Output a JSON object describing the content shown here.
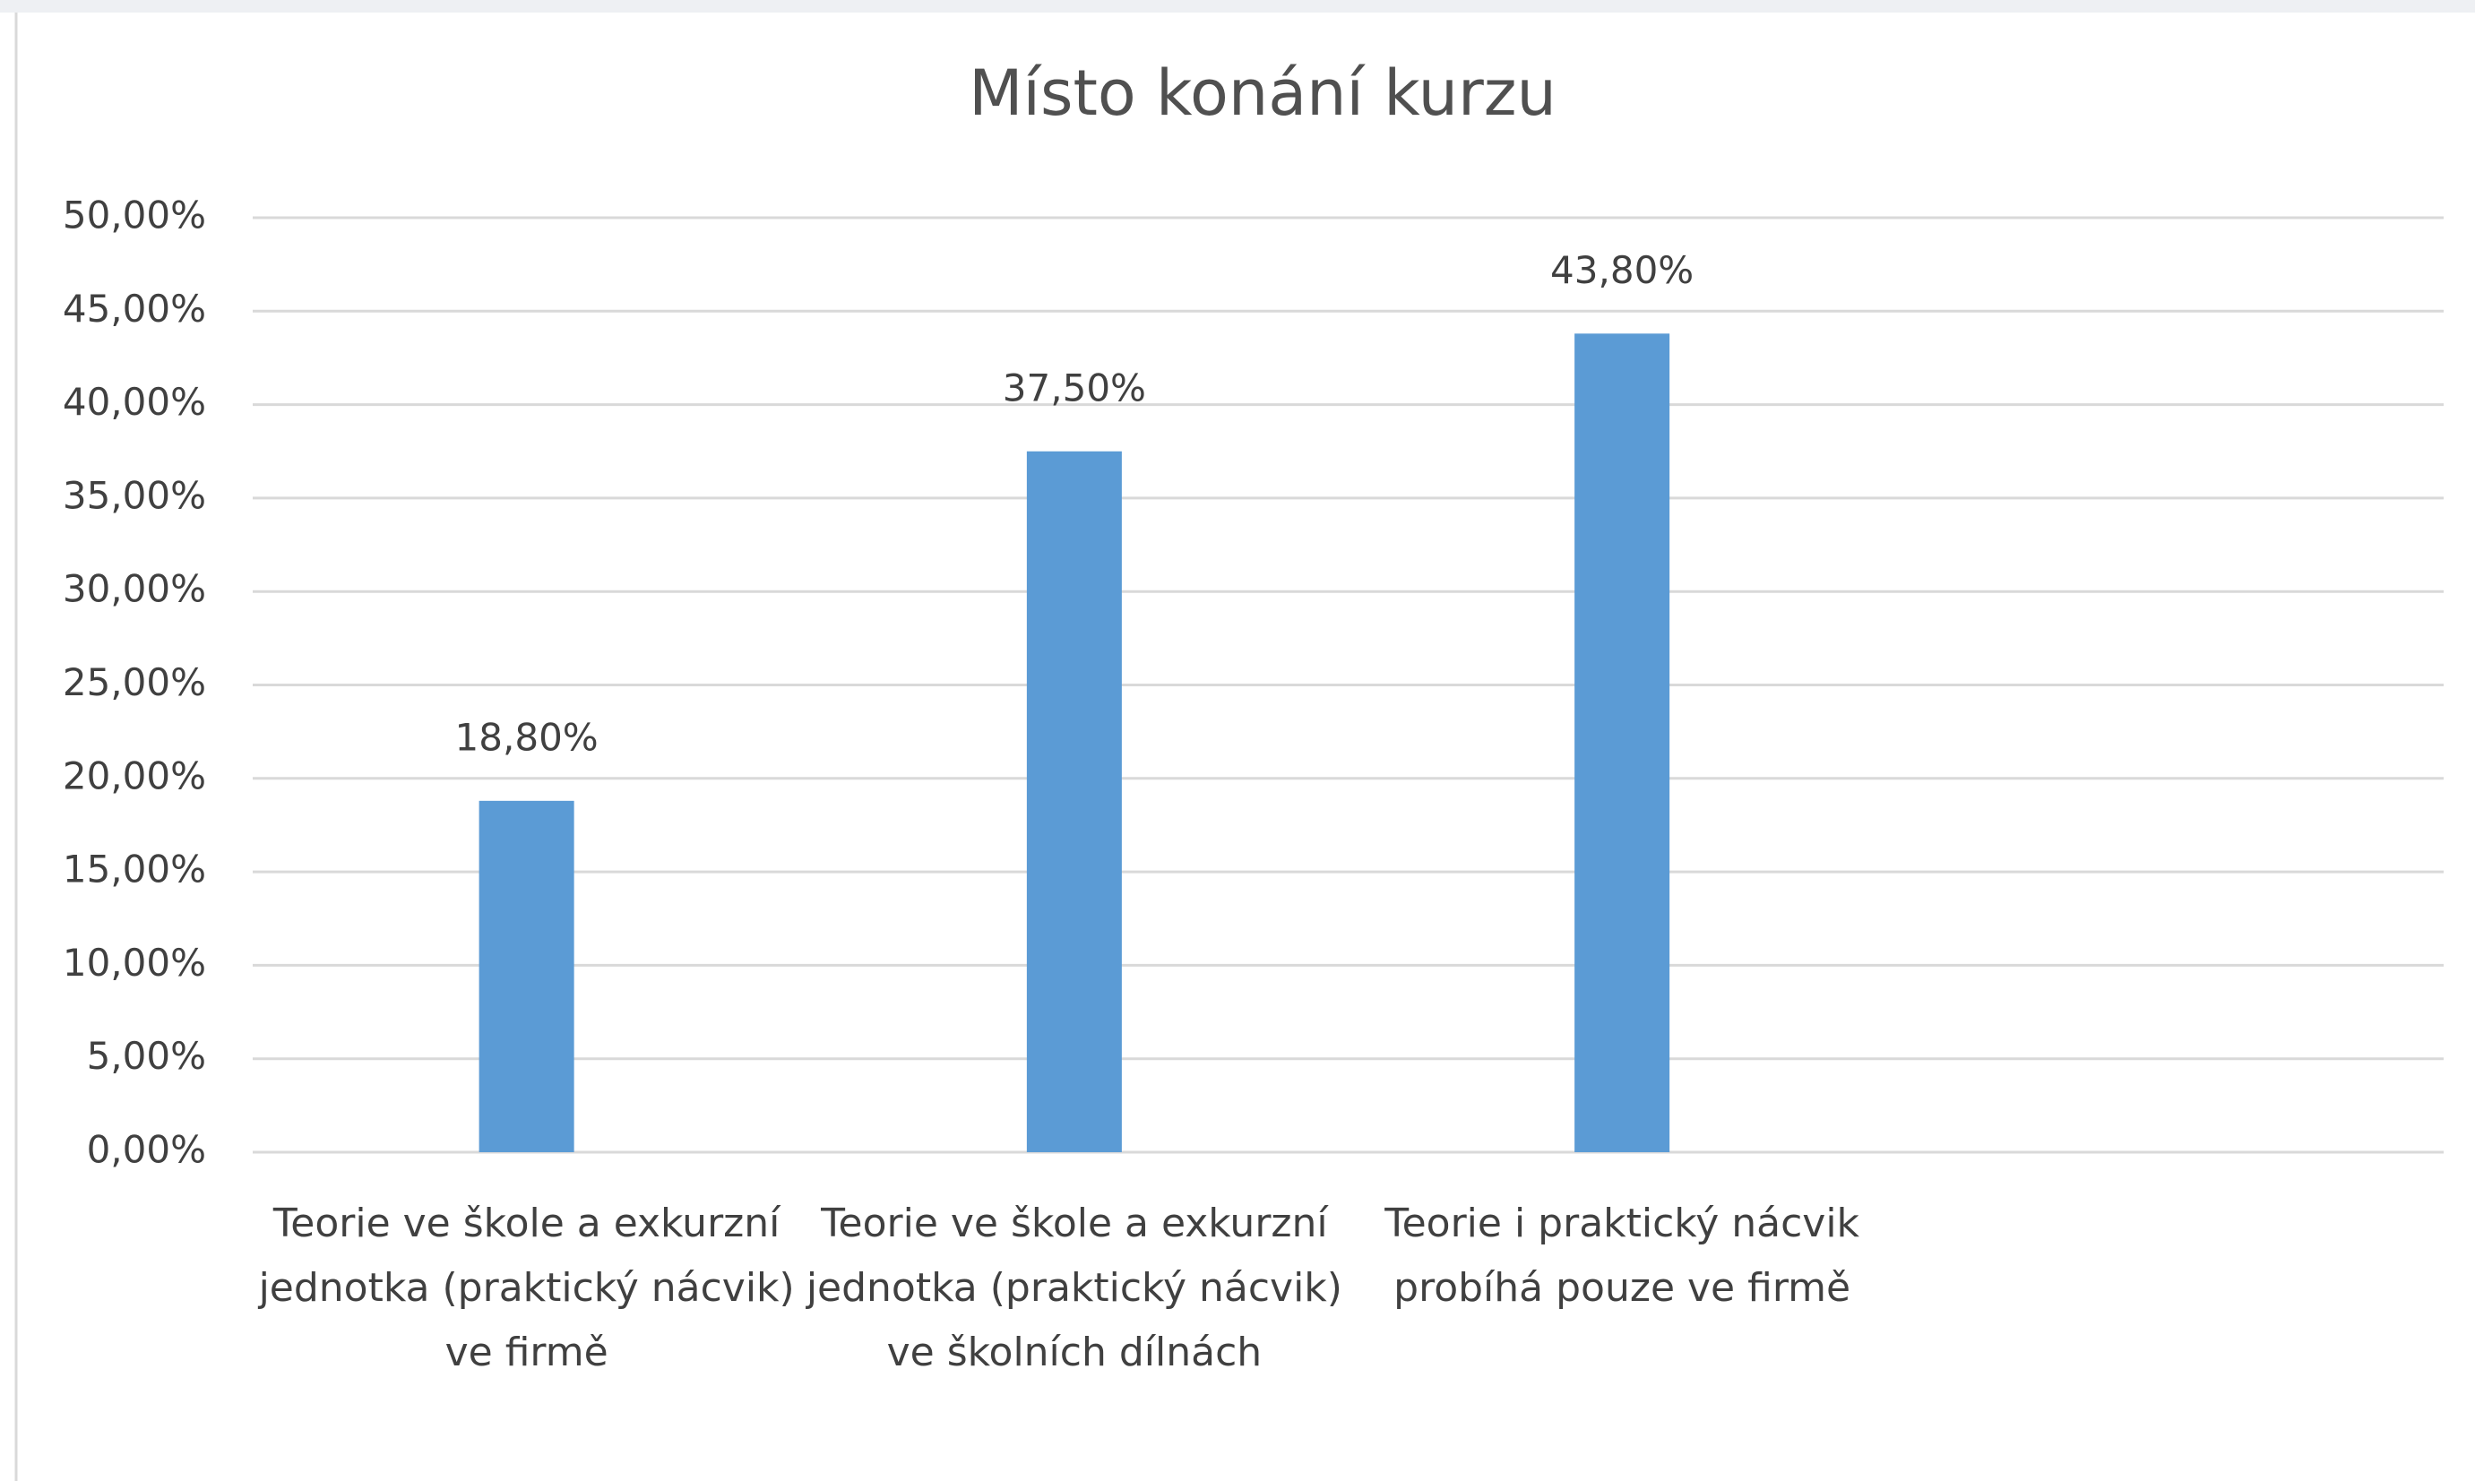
{
  "chart_data": {
    "type": "bar",
    "title": "Místo konání kurzu",
    "categories": [
      "Teorie ve škole a exkurzní jednotka (praktický nácvik) ve firmě",
      "Teorie ve škole a exkurzní jednotka (praktický nácvik) ve školních dílnách",
      "Teorie i praktický nácvik probíhá pouze ve firmě",
      null
    ],
    "values": [
      18.8,
      37.5,
      43.8,
      null
    ],
    "value_labels": [
      "18,80%",
      "37,50%",
      "43,80%",
      null
    ],
    "color": "#5b9bd5",
    "ylim": [
      0,
      50
    ],
    "yticks": [
      {
        "value": 0,
        "label": "0,00%"
      },
      {
        "value": 5,
        "label": "5,00%"
      },
      {
        "value": 10,
        "label": "10,00%"
      },
      {
        "value": 15,
        "label": "15,00%"
      },
      {
        "value": 20,
        "label": "20,00%"
      },
      {
        "value": 25,
        "label": "25,00%"
      },
      {
        "value": 30,
        "label": "30,00%"
      },
      {
        "value": 35,
        "label": "35,00%"
      },
      {
        "value": 40,
        "label": "40,00%"
      },
      {
        "value": 45,
        "label": "45,00%"
      },
      {
        "value": 50,
        "label": "50,00%"
      }
    ],
    "grid": true
  }
}
